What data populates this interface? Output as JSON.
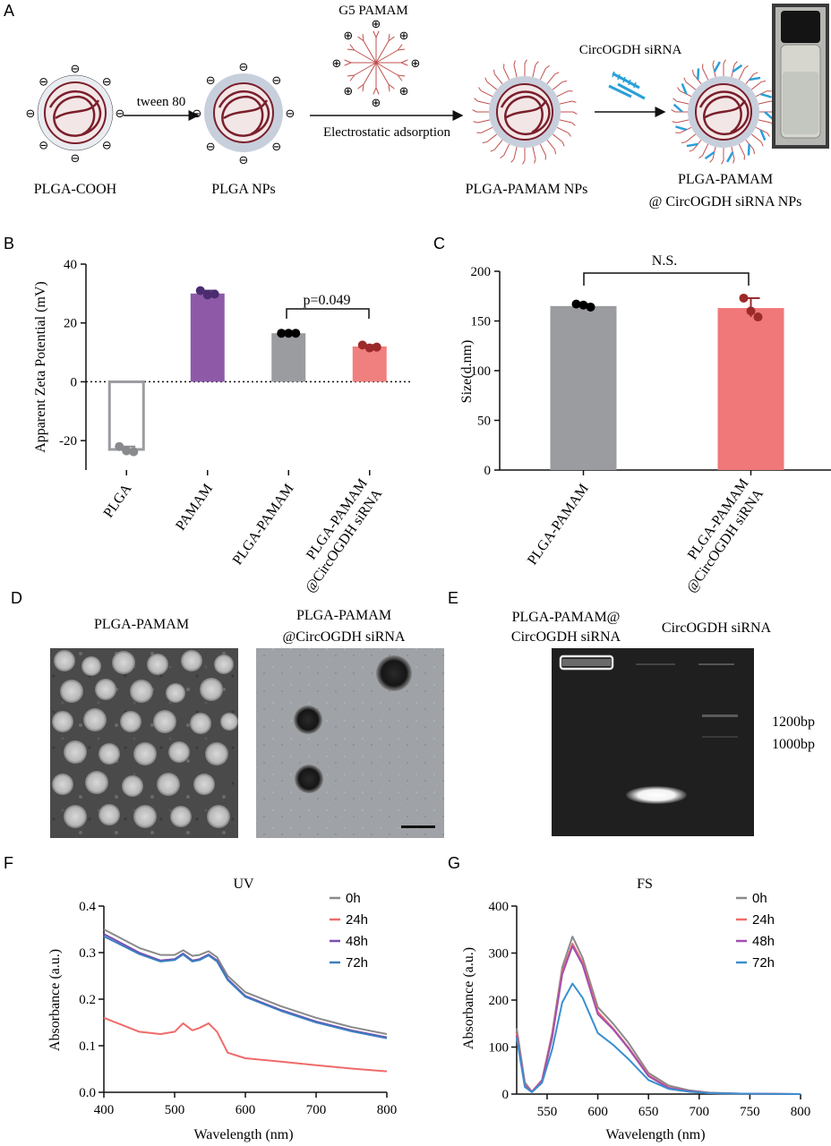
{
  "panel_a": {
    "letter": "A",
    "pamam_label": "G5 PAMAM",
    "sirna_label": "CircOGDH siRNA",
    "step1": "tween 80",
    "step2": "Electrostatic adsorption",
    "labels": [
      "PLGA-COOH",
      "PLGA NPs",
      "PLGA-PAMAM NPs",
      "PLGA-PAMAM",
      "@ CircOGDH siRNA NPs"
    ],
    "minus": "⊖",
    "plus": "⊕"
  },
  "panel_b": {
    "letter": "B",
    "pvalue": "p=0.049",
    "chart_data": {
      "type": "bar",
      "categories": [
        "PLGA",
        "PAMAM",
        "PLGA-PAMAM",
        "PLGA-PAMAM @CircOGDH siRNA"
      ],
      "values": [
        -23,
        30,
        16.5,
        12
      ],
      "points": [
        [
          -22,
          -23.5,
          -23.8
        ],
        [
          31,
          29.5,
          29.8
        ],
        [
          16.5,
          16.5,
          16.5
        ],
        [
          12.5,
          11.5,
          11.8
        ]
      ],
      "colors": [
        "#ffffff",
        "#8e5aa8",
        "#9a9ca0",
        "#f08080"
      ],
      "point_colors": [
        "#888a8e",
        "#4a2d6e",
        "#000000",
        "#9c2a2a"
      ],
      "ylabel": "Apparent Zeta Potential (mV)",
      "ylim": [
        -30,
        40
      ],
      "yticks": [
        "40",
        "20",
        "0",
        "-20"
      ]
    }
  },
  "panel_c": {
    "letter": "C",
    "ns": "N.S.",
    "chart_data": {
      "type": "bar",
      "categories": [
        "PLGA-PAMAM",
        "PLGA-PAMAM @CircOGDH siRNA"
      ],
      "values": [
        165,
        163
      ],
      "points": [
        [
          167,
          166,
          164
        ],
        [
          173,
          160,
          154
        ]
      ],
      "colors": [
        "#9a9ca0",
        "#f07878"
      ],
      "point_colors": [
        "#000000",
        "#9c2a2a"
      ],
      "ylabel": "Size(d.nm)",
      "ylim": [
        0,
        200
      ],
      "yticks": [
        "200",
        "150",
        "100",
        "50",
        "0"
      ]
    }
  },
  "panel_d": {
    "letter": "D",
    "title1": "PLGA-PAMAM",
    "title2a": "PLGA-PAMAM",
    "title2b": "@CircOGDH siRNA"
  },
  "panel_e": {
    "letter": "E",
    "lane1a": "PLGA-PAMAM@",
    "lane1b": "CircOGDH siRNA",
    "lane2": "CircOGDH siRNA",
    "marker1": "1200bp",
    "marker2": "1000bp"
  },
  "panel_f": {
    "letter": "F",
    "chart_data": {
      "type": "line",
      "title": "UV",
      "xlabel": "Wavelength (nm)",
      "ylabel": "Absorbance (a.u.)",
      "xlim": [
        400,
        800
      ],
      "ylim": [
        0,
        0.4
      ],
      "xticks": [
        "400",
        "500",
        "600",
        "700",
        "800"
      ],
      "yticks": [
        "0.4",
        "0.3",
        "0.2",
        "0.1",
        "0.0"
      ],
      "x": [
        400,
        450,
        480,
        500,
        512,
        525,
        535,
        548,
        560,
        575,
        600,
        650,
        700,
        750,
        800
      ],
      "series": [
        {
          "name": "0h",
          "color": "#8a8a8a",
          "values": [
            0.35,
            0.31,
            0.295,
            0.295,
            0.305,
            0.293,
            0.295,
            0.303,
            0.29,
            0.25,
            0.215,
            0.185,
            0.16,
            0.14,
            0.125
          ]
        },
        {
          "name": "24h",
          "color": "#f06a6a",
          "values": [
            0.16,
            0.13,
            0.125,
            0.13,
            0.148,
            0.133,
            0.138,
            0.148,
            0.13,
            0.085,
            0.073,
            0.066,
            0.058,
            0.051,
            0.045
          ]
        },
        {
          "name": "48h",
          "color": "#7a4fb0",
          "values": [
            0.34,
            0.3,
            0.283,
            0.286,
            0.298,
            0.283,
            0.286,
            0.296,
            0.283,
            0.243,
            0.207,
            0.177,
            0.152,
            0.133,
            0.118
          ]
        },
        {
          "name": "72h",
          "color": "#3a7fc0",
          "values": [
            0.335,
            0.297,
            0.281,
            0.284,
            0.296,
            0.281,
            0.284,
            0.294,
            0.281,
            0.241,
            0.205,
            0.175,
            0.15,
            0.131,
            0.116
          ]
        }
      ]
    }
  },
  "panel_g": {
    "letter": "G",
    "chart_data": {
      "type": "line",
      "title": "FS",
      "xlabel": "Wavelength (nm)",
      "ylabel": "Absorbance (a.u.)",
      "xlim": [
        520,
        800
      ],
      "ylim": [
        0,
        400
      ],
      "xticks": [
        "550",
        "600",
        "650",
        "700",
        "750",
        "800"
      ],
      "yticks": [
        "400",
        "300",
        "200",
        "100",
        "0"
      ],
      "x": [
        520,
        528,
        535,
        545,
        555,
        565,
        575,
        585,
        600,
        615,
        630,
        650,
        670,
        690,
        710,
        740,
        800
      ],
      "series": [
        {
          "name": "0h",
          "color": "#8a8a8a",
          "values": [
            140,
            25,
            5,
            30,
            130,
            270,
            335,
            290,
            185,
            150,
            110,
            45,
            18,
            8,
            3,
            1,
            0
          ]
        },
        {
          "name": "24h",
          "color": "#f06a6a",
          "values": [
            130,
            20,
            5,
            30,
            125,
            260,
            320,
            280,
            175,
            140,
            100,
            40,
            14,
            6,
            2,
            1,
            0
          ]
        },
        {
          "name": "48h",
          "color": "#a050b0",
          "values": [
            125,
            18,
            5,
            28,
            120,
            255,
            315,
            275,
            170,
            138,
            98,
            38,
            13,
            6,
            2,
            1,
            0
          ]
        },
        {
          "name": "72h",
          "color": "#3a8fd0",
          "values": [
            120,
            15,
            4,
            24,
            95,
            195,
            235,
            205,
            130,
            105,
            75,
            30,
            11,
            5,
            2,
            1,
            0
          ]
        }
      ]
    }
  }
}
